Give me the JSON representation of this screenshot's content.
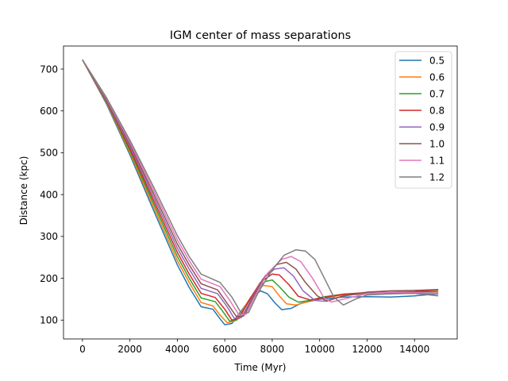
{
  "chart_data": {
    "type": "line",
    "title": "IGM center of mass separations",
    "xlabel": "Time (Myr)",
    "ylabel": "Distance (kpc)",
    "xlim": [
      -800,
      15800
    ],
    "ylim": [
      55,
      755
    ],
    "xticks": [
      0,
      2000,
      4000,
      6000,
      8000,
      10000,
      12000,
      14000
    ],
    "yticks": [
      100,
      200,
      300,
      400,
      500,
      600,
      700
    ],
    "grid": false,
    "legend_position": "top-right",
    "series": [
      {
        "name": "0.5",
        "color": "#1f77b4",
        "x": [
          0,
          1000,
          2000,
          3000,
          4000,
          4500,
          5000,
          5500,
          5800,
          6000,
          6300,
          6600,
          7000,
          7500,
          7800,
          8100,
          8400,
          8800,
          9200,
          10000,
          11000,
          12000,
          13000,
          14000,
          15000
        ],
        "y": [
          722,
          618,
          495,
          362,
          232,
          178,
          132,
          126,
          103,
          89,
          92,
          115,
          145,
          170,
          163,
          142,
          125,
          128,
          140,
          150,
          155,
          156,
          155,
          158,
          163
        ]
      },
      {
        "name": "0.6",
        "color": "#ff7f0e",
        "x": [
          0,
          1000,
          2000,
          3000,
          4000,
          4500,
          5000,
          5500,
          5800,
          6100,
          6400,
          6700,
          7100,
          7600,
          8000,
          8300,
          8600,
          9000,
          9500,
          10000,
          11000,
          12000,
          13000,
          14000,
          15000
        ],
        "y": [
          722,
          621,
          500,
          370,
          242,
          190,
          142,
          134,
          112,
          94,
          97,
          120,
          155,
          183,
          180,
          158,
          139,
          136,
          144,
          152,
          160,
          162,
          163,
          164,
          165
        ]
      },
      {
        "name": "0.7",
        "color": "#2ca02c",
        "x": [
          0,
          1000,
          2000,
          3000,
          4000,
          4500,
          5000,
          5600,
          5900,
          6200,
          6500,
          6800,
          7200,
          7700,
          8000,
          8300,
          8700,
          9100,
          9600,
          10100,
          11000,
          12000,
          13000,
          14000,
          15000
        ],
        "y": [
          722,
          623,
          505,
          378,
          252,
          200,
          153,
          144,
          122,
          98,
          100,
          125,
          163,
          192,
          196,
          180,
          155,
          143,
          147,
          155,
          162,
          165,
          166,
          167,
          168
        ]
      },
      {
        "name": "0.8",
        "color": "#d62728",
        "x": [
          0,
          1000,
          2000,
          3000,
          4000,
          4500,
          5000,
          5600,
          6000,
          6300,
          6600,
          7000,
          7500,
          8000,
          8300,
          8700,
          9100,
          9600,
          10100,
          11000,
          12000,
          13000,
          14000,
          15000
        ],
        "y": [
          722,
          625,
          510,
          386,
          262,
          210,
          164,
          154,
          126,
          100,
          104,
          145,
          190,
          210,
          208,
          185,
          157,
          148,
          153,
          162,
          166,
          167,
          168,
          172
        ]
      },
      {
        "name": "0.9",
        "color": "#9467bd",
        "x": [
          0,
          1000,
          2000,
          3000,
          4000,
          4500,
          5000,
          5700,
          6100,
          6400,
          6700,
          7100,
          7600,
          8100,
          8500,
          8900,
          9300,
          9800,
          10200,
          11000,
          12000,
          13000,
          14000,
          15000
        ],
        "y": [
          722,
          627,
          515,
          394,
          272,
          222,
          176,
          163,
          132,
          104,
          106,
          148,
          198,
          222,
          225,
          205,
          170,
          147,
          145,
          158,
          165,
          166,
          165,
          162
        ]
      },
      {
        "name": "1.0",
        "color": "#8c564b",
        "x": [
          0,
          1000,
          2000,
          3000,
          4000,
          4500,
          5000,
          5700,
          6100,
          6500,
          6800,
          7200,
          7700,
          8200,
          8600,
          9000,
          9400,
          9900,
          10300,
          11000,
          12000,
          13000,
          14000,
          15000
        ],
        "y": [
          722,
          629,
          520,
          402,
          282,
          232,
          187,
          172,
          140,
          108,
          110,
          155,
          205,
          233,
          238,
          222,
          190,
          158,
          145,
          158,
          167,
          170,
          171,
          173
        ]
      },
      {
        "name": "1.1",
        "color": "#e377c2",
        "x": [
          0,
          1000,
          2000,
          3000,
          4000,
          4500,
          5000,
          5800,
          6200,
          6600,
          6900,
          7300,
          7800,
          8400,
          8800,
          9200,
          9700,
          10200,
          10500,
          11000,
          12000,
          13000,
          14000,
          15000
        ],
        "y": [
          722,
          631,
          525,
          410,
          292,
          242,
          198,
          180,
          148,
          112,
          114,
          160,
          212,
          245,
          252,
          240,
          200,
          152,
          143,
          150,
          163,
          167,
          166,
          164
        ]
      },
      {
        "name": "1.2",
        "color": "#7f7f7f",
        "x": [
          0,
          1000,
          2000,
          3000,
          4000,
          4500,
          5000,
          5800,
          6300,
          6700,
          7000,
          7400,
          8000,
          8500,
          9000,
          9400,
          9800,
          10200,
          10600,
          11000,
          11500,
          12000,
          13000,
          14000,
          15000
        ],
        "y": [
          722,
          633,
          530,
          418,
          302,
          252,
          210,
          190,
          155,
          116,
          118,
          165,
          220,
          255,
          268,
          265,
          245,
          200,
          155,
          136,
          150,
          160,
          163,
          164,
          158
        ]
      }
    ]
  }
}
